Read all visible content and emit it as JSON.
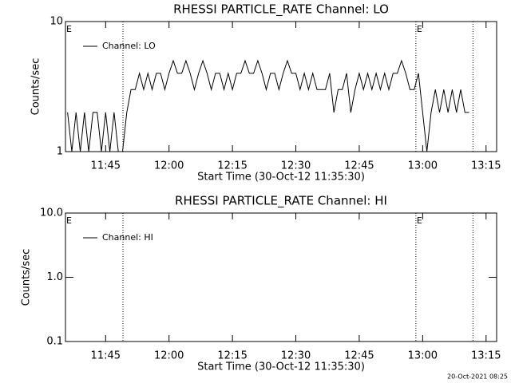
{
  "chart_data": [
    {
      "type": "line",
      "title": "RHESSI PARTICLE_RATE Channel: LO",
      "xlabel": "Start Time (30-Oct-12 11:35:30)",
      "ylabel": "Counts/sec",
      "xlim": [
        695.5,
        797.5
      ],
      "xticks": [
        {
          "value": 705,
          "label": "11:45"
        },
        {
          "value": 720,
          "label": "12:00"
        },
        {
          "value": 735,
          "label": "12:15"
        },
        {
          "value": 750,
          "label": "12:30"
        },
        {
          "value": 765,
          "label": "12:45"
        },
        {
          "value": 780,
          "label": "13:00"
        },
        {
          "value": 795,
          "label": "13:15"
        }
      ],
      "ylim": [
        1,
        10
      ],
      "yticks": [
        1,
        10
      ],
      "log_y": true,
      "legend": "upper left",
      "x": [
        696,
        697,
        698,
        699,
        700,
        701,
        702,
        703,
        704,
        705,
        706,
        707,
        708,
        709,
        710,
        711,
        712,
        713,
        714,
        715,
        716,
        717,
        718,
        719,
        720,
        721,
        722,
        723,
        724,
        725,
        726,
        727,
        728,
        729,
        730,
        731,
        732,
        733,
        734,
        735,
        736,
        737,
        738,
        739,
        740,
        741,
        742,
        743,
        744,
        745,
        746,
        747,
        748,
        749,
        750,
        751,
        752,
        753,
        754,
        755,
        756,
        757,
        758,
        759,
        760,
        761,
        762,
        763,
        764,
        765,
        766,
        767,
        768,
        769,
        770,
        771,
        772,
        773,
        774,
        775,
        776,
        777,
        778,
        779,
        780,
        781,
        782,
        783,
        784,
        785,
        786,
        787,
        788,
        789,
        790,
        791
      ],
      "series": [
        {
          "name": "Channel: LO",
          "color": "#000000",
          "values": [
            2,
            1,
            2,
            1,
            2,
            1,
            2,
            2,
            1,
            2,
            1,
            2,
            1,
            1,
            2,
            3,
            3,
            4,
            3,
            4,
            3,
            4,
            4,
            3,
            4,
            5,
            4,
            4,
            5,
            4,
            3,
            4,
            5,
            4,
            3,
            4,
            4,
            3,
            4,
            3,
            4,
            4,
            5,
            4,
            4,
            5,
            4,
            3,
            4,
            4,
            3,
            4,
            5,
            4,
            4,
            3,
            4,
            3,
            4,
            3,
            3,
            3,
            4,
            2,
            3,
            3,
            4,
            2,
            3,
            4,
            3,
            4,
            3,
            4,
            3,
            4,
            3,
            4,
            4,
            5,
            4,
            3,
            3,
            4,
            2,
            1,
            2,
            3,
            2,
            3,
            2,
            3,
            2,
            3,
            2,
            2
          ]
        }
      ],
      "vlines": [
        709.1,
        778.4,
        791.9
      ],
      "annotations": [
        {
          "text": "E",
          "x": 695.5
        },
        {
          "text": "E",
          "x": 778.4
        }
      ]
    },
    {
      "type": "line",
      "title": "RHESSI PARTICLE_RATE Channel: HI",
      "xlabel": "Start Time (30-Oct-12 11:35:30)",
      "ylabel": "Counts/sec",
      "xlim": [
        695.5,
        797.5
      ],
      "xticks": [
        {
          "value": 705,
          "label": "11:45"
        },
        {
          "value": 720,
          "label": "12:00"
        },
        {
          "value": 735,
          "label": "12:15"
        },
        {
          "value": 750,
          "label": "12:30"
        },
        {
          "value": 765,
          "label": "12:45"
        },
        {
          "value": 780,
          "label": "13:00"
        },
        {
          "value": 795,
          "label": "13:15"
        }
      ],
      "ylim": [
        0.1,
        10
      ],
      "yticks": [
        0.1,
        {
          "value": 1,
          "label": "1.0"
        },
        {
          "value": 10,
          "label": "10.0"
        }
      ],
      "log_y": true,
      "legend": "upper left",
      "x": [],
      "series": [
        {
          "name": "Channel: HI",
          "color": "#000000",
          "values": []
        }
      ],
      "vlines": [
        709.1,
        778.4,
        791.9
      ],
      "annotations": [
        {
          "text": "E",
          "x": 695.5
        },
        {
          "text": "E",
          "x": 778.4
        }
      ]
    }
  ],
  "timestamp": "20-Oct-2021 08:25"
}
